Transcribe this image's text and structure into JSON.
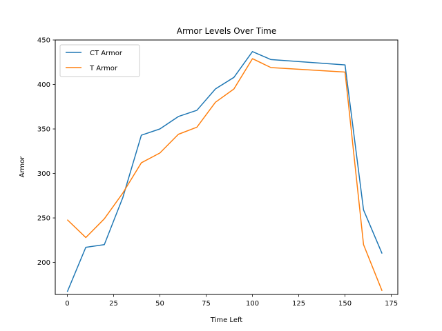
{
  "chart_data": {
    "type": "line",
    "title": "Armor Levels Over Time",
    "xlabel": "Time Left",
    "ylabel": "Armor",
    "xlim": [
      -6.5,
      178.5
    ],
    "ylim": [
      164,
      450
    ],
    "x_ticks": [
      0,
      25,
      50,
      75,
      100,
      125,
      150,
      175
    ],
    "y_ticks": [
      200,
      250,
      300,
      350,
      400,
      450
    ],
    "grid": false,
    "legend": "upper-left",
    "series": [
      {
        "name": "CT Armor",
        "color": "#1f77b4",
        "x": [
          0,
          10,
          20,
          30,
          40,
          50,
          60,
          70,
          80,
          90,
          100,
          110,
          150,
          160,
          170
        ],
        "y": [
          167,
          217,
          220,
          273,
          343,
          350,
          364,
          371,
          395,
          408,
          437,
          428,
          422,
          259,
          210
        ]
      },
      {
        "name": "T Armor",
        "color": "#ff7f0e",
        "x": [
          0,
          10,
          20,
          30,
          40,
          50,
          60,
          70,
          80,
          90,
          100,
          110,
          150,
          160,
          170
        ],
        "y": [
          248,
          228,
          249,
          278,
          312,
          323,
          344,
          352,
          380,
          395,
          429,
          419,
          414,
          220,
          168
        ]
      }
    ]
  }
}
